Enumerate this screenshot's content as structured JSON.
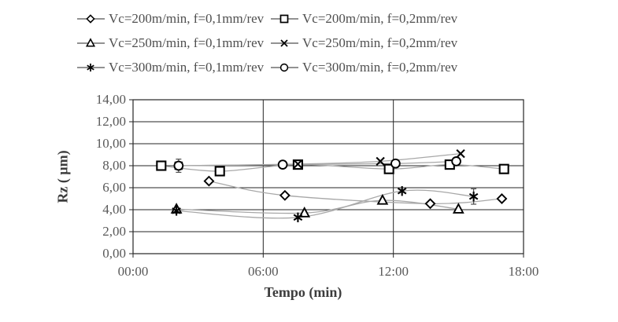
{
  "colors": {
    "background": "#ffffff",
    "grid": "#262626",
    "series_line": "#a8a8a8",
    "legend_line": "#6f6f6f",
    "marker": "#000000",
    "error_bar": "#4d4d4d",
    "tick_text": "#595959",
    "title_text": "#3d3d3d"
  },
  "chart_data": {
    "type": "line",
    "title": "",
    "xlabel": "Tempo (min)",
    "ylabel": "Rz ( µm)",
    "xlim": [
      0,
      18
    ],
    "ylim": [
      0,
      14
    ],
    "grid": true,
    "legend_position": "top",
    "xticks": {
      "values": [
        0,
        6,
        12,
        18
      ],
      "labels": [
        "00:00",
        "06:00",
        "12:00",
        "18:00"
      ]
    },
    "yticks": {
      "values": [
        0,
        2,
        4,
        6,
        8,
        10,
        12,
        14
      ],
      "labels": [
        "0,00",
        "2,00",
        "4,00",
        "6,00",
        "8,00",
        "10,00",
        "12,00",
        "14,00"
      ]
    },
    "series": [
      {
        "name": "Vc=200m/min, f=0,1mm/rev",
        "marker": "diamond",
        "points": [
          {
            "t": 3.5,
            "rz": 6.6
          },
          {
            "t": 7.0,
            "rz": 5.3
          },
          {
            "t": 13.7,
            "rz": 4.55
          },
          {
            "t": 17.0,
            "rz": 5.0
          }
        ]
      },
      {
        "name": "Vc=200m/min, f=0,2mm/rev",
        "marker": "square",
        "points": [
          {
            "t": 1.3,
            "rz": 8.0
          },
          {
            "t": 4.0,
            "rz": 7.5
          },
          {
            "t": 7.6,
            "rz": 8.1
          },
          {
            "t": 11.8,
            "rz": 7.7
          },
          {
            "t": 14.6,
            "rz": 8.1
          },
          {
            "t": 17.1,
            "rz": 7.7
          }
        ]
      },
      {
        "name": "Vc=250m/min, f=0,1mm/rev",
        "marker": "triangle",
        "points": [
          {
            "t": 2.0,
            "rz": 4.05
          },
          {
            "t": 7.9,
            "rz": 3.7
          },
          {
            "t": 11.5,
            "rz": 4.85
          },
          {
            "t": 15.0,
            "rz": 4.05
          }
        ]
      },
      {
        "name": "Vc=250m/min, f=0,2mm/rev",
        "marker": "x",
        "points": [
          {
            "t": 2.1,
            "rz": 8.0
          },
          {
            "t": 7.6,
            "rz": 8.15
          },
          {
            "t": 11.4,
            "rz": 8.4
          },
          {
            "t": 15.1,
            "rz": 9.1
          }
        ]
      },
      {
        "name": "Vc=300m/min, f=0,1mm/rev",
        "marker": "asterisk",
        "points": [
          {
            "t": 2.0,
            "rz": 3.9
          },
          {
            "t": 7.6,
            "rz": 3.3
          },
          {
            "t": 12.4,
            "rz": 5.7
          },
          {
            "t": 15.7,
            "rz": 5.2,
            "err": 0.7
          }
        ]
      },
      {
        "name": "Vc=300m/min, f=0,2mm/rev",
        "marker": "circle",
        "points": [
          {
            "t": 2.1,
            "rz": 8.0,
            "err": 0.6
          },
          {
            "t": 6.9,
            "rz": 8.1
          },
          {
            "t": 12.1,
            "rz": 8.2
          },
          {
            "t": 14.9,
            "rz": 8.4
          }
        ]
      }
    ]
  }
}
